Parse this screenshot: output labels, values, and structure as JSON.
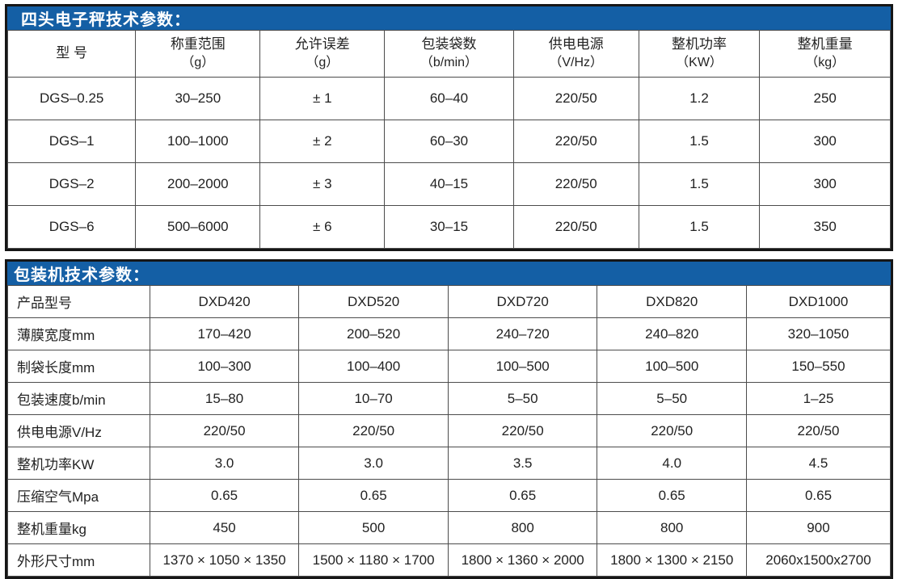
{
  "accent_color": "#145fa5",
  "scale_table": {
    "title": "四头电子秤技术参数：",
    "columns": [
      {
        "name": "型  号",
        "unit": ""
      },
      {
        "name": "称重范围",
        "unit": "（g）"
      },
      {
        "name": "允许误差",
        "unit": "（g）"
      },
      {
        "name": "包装袋数",
        "unit": "（b/min）"
      },
      {
        "name": "供电电源",
        "unit": "（V/Hz）"
      },
      {
        "name": "整机功率",
        "unit": "（KW）"
      },
      {
        "name": "整机重量",
        "unit": "（kg）"
      }
    ],
    "rows": [
      [
        "DGS–0.25",
        "30–250",
        "± 1",
        "60–40",
        "220/50",
        "1.2",
        "250"
      ],
      [
        "DGS–1",
        "100–1000",
        "± 2",
        "60–30",
        "220/50",
        "1.5",
        "300"
      ],
      [
        "DGS–2",
        "200–2000",
        "± 3",
        "40–15",
        "220/50",
        "1.5",
        "300"
      ],
      [
        "DGS–6",
        "500–6000",
        "± 6",
        "30–15",
        "220/50",
        "1.5",
        "350"
      ]
    ]
  },
  "packer_table": {
    "title": "包装机技术参数：",
    "rows": [
      {
        "label": "产品型号",
        "values": [
          "DXD420",
          "DXD520",
          "DXD720",
          "DXD820",
          "DXD1000"
        ]
      },
      {
        "label": "薄膜宽度mm",
        "values": [
          "170–420",
          "200–520",
          "240–720",
          "240–820",
          "320–1050"
        ]
      },
      {
        "label": "制袋长度mm",
        "values": [
          "100–300",
          "100–400",
          "100–500",
          "100–500",
          "150–550"
        ]
      },
      {
        "label": "包装速度b/min",
        "values": [
          "15–80",
          "10–70",
          "5–50",
          "5–50",
          "1–25"
        ]
      },
      {
        "label": "供电电源V/Hz",
        "values": [
          "220/50",
          "220/50",
          "220/50",
          "220/50",
          "220/50"
        ]
      },
      {
        "label": "整机功率KW",
        "values": [
          "3.0",
          "3.0",
          "3.5",
          "4.0",
          "4.5"
        ]
      },
      {
        "label": "压缩空气Mpa",
        "values": [
          "0.65",
          "0.65",
          "0.65",
          "0.65",
          "0.65"
        ]
      },
      {
        "label": "整机重量kg",
        "values": [
          "450",
          "500",
          "800",
          "800",
          "900"
        ]
      },
      {
        "label": "外形尺寸mm",
        "values": [
          "1370 × 1050 × 1350",
          "1500 × 1180 × 1700",
          "1800 × 1360 × 2000",
          "1800 × 1300 × 2150",
          "2060x1500x2700"
        ]
      }
    ]
  }
}
